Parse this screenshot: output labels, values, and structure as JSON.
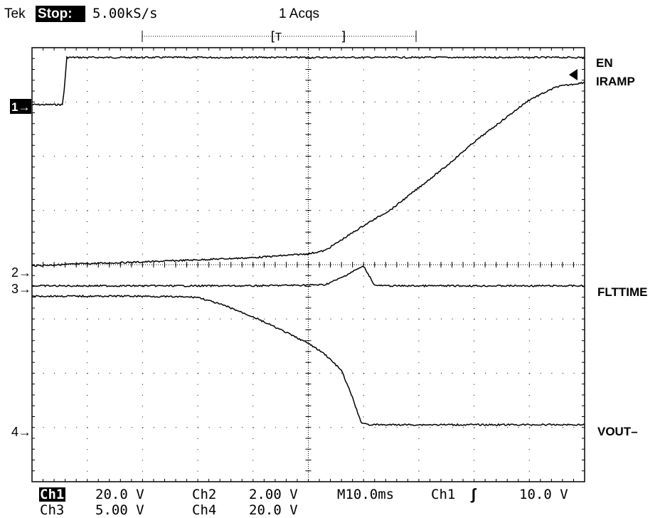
{
  "header": {
    "brand": "Tek",
    "run_state": "Stop:",
    "sample_rate": "5.00kS/s",
    "acquisitions": "1 Acqs"
  },
  "trigger_bar": {
    "bracket_left": "[",
    "trigger_marker": "T",
    "bracket_right": "]"
  },
  "channel_markers": {
    "ch1": "1→",
    "ch2": "2→",
    "ch3": "3→",
    "ch4": "4→"
  },
  "trace_labels": {
    "en": "EN",
    "iramp": "IRAMP",
    "flttime": "FLTTIME",
    "vout": "VOUT–"
  },
  "readout": {
    "ch1_label": "Ch1",
    "ch1_scale": "20.0 V",
    "ch2_label": "Ch2",
    "ch2_scale": "2.00 V",
    "ch3_label": "Ch3",
    "ch3_scale": "5.00 V",
    "ch4_label": "Ch4",
    "ch4_scale": "20.0 V",
    "timebase": "M10.0ms",
    "trigger_source": "Ch1",
    "trigger_slope": "ʃ",
    "trigger_level": "10.0 V"
  },
  "chart_data": {
    "type": "line",
    "x_divisions": 10,
    "y_divisions": 8,
    "grid": true,
    "grid_style": "dotted",
    "x_unit": "div (10.0 ms/div)",
    "y_unit": "div",
    "xlim": [
      0,
      10
    ],
    "ylim": [
      -4,
      4
    ],
    "series": [
      {
        "name": "EN",
        "channel": 1,
        "color": "#000000",
        "x": [
          0,
          0.55,
          0.58,
          0.63,
          10
        ],
        "y": [
          2.95,
          2.95,
          3.2,
          3.82,
          3.82
        ]
      },
      {
        "name": "IRAMP",
        "channel": 2,
        "color": "#000000",
        "x": [
          0,
          1,
          2,
          3,
          4,
          5,
          5.3,
          6,
          6.5,
          7,
          7.5,
          8,
          8.5,
          9,
          9.5,
          10
        ],
        "y": [
          -0.02,
          0.02,
          0.05,
          0.09,
          0.13,
          0.2,
          0.26,
          0.72,
          1.02,
          1.42,
          1.82,
          2.26,
          2.65,
          3.04,
          3.28,
          3.36
        ]
      },
      {
        "name": "FLTTIME",
        "channel": 3,
        "color": "#000000",
        "x": [
          0,
          2,
          4,
          5.3,
          5.6,
          5.85,
          6.0,
          6.1,
          6.2,
          6.4,
          10
        ],
        "y": [
          -0.39,
          -0.39,
          -0.39,
          -0.37,
          -0.24,
          -0.1,
          -0.03,
          -0.2,
          -0.38,
          -0.39,
          -0.39
        ]
      },
      {
        "name": "VOUT–",
        "channel": 4,
        "color": "#000000",
        "x": [
          0,
          2,
          3,
          3.5,
          4,
          4.5,
          5,
          5.3,
          5.6,
          5.8,
          5.95,
          6.1,
          6.4,
          10
        ],
        "y": [
          -0.58,
          -0.58,
          -0.6,
          -0.76,
          -0.96,
          -1.2,
          -1.45,
          -1.65,
          -1.95,
          -2.45,
          -2.9,
          -2.95,
          -2.95,
          -2.95
        ]
      }
    ]
  }
}
